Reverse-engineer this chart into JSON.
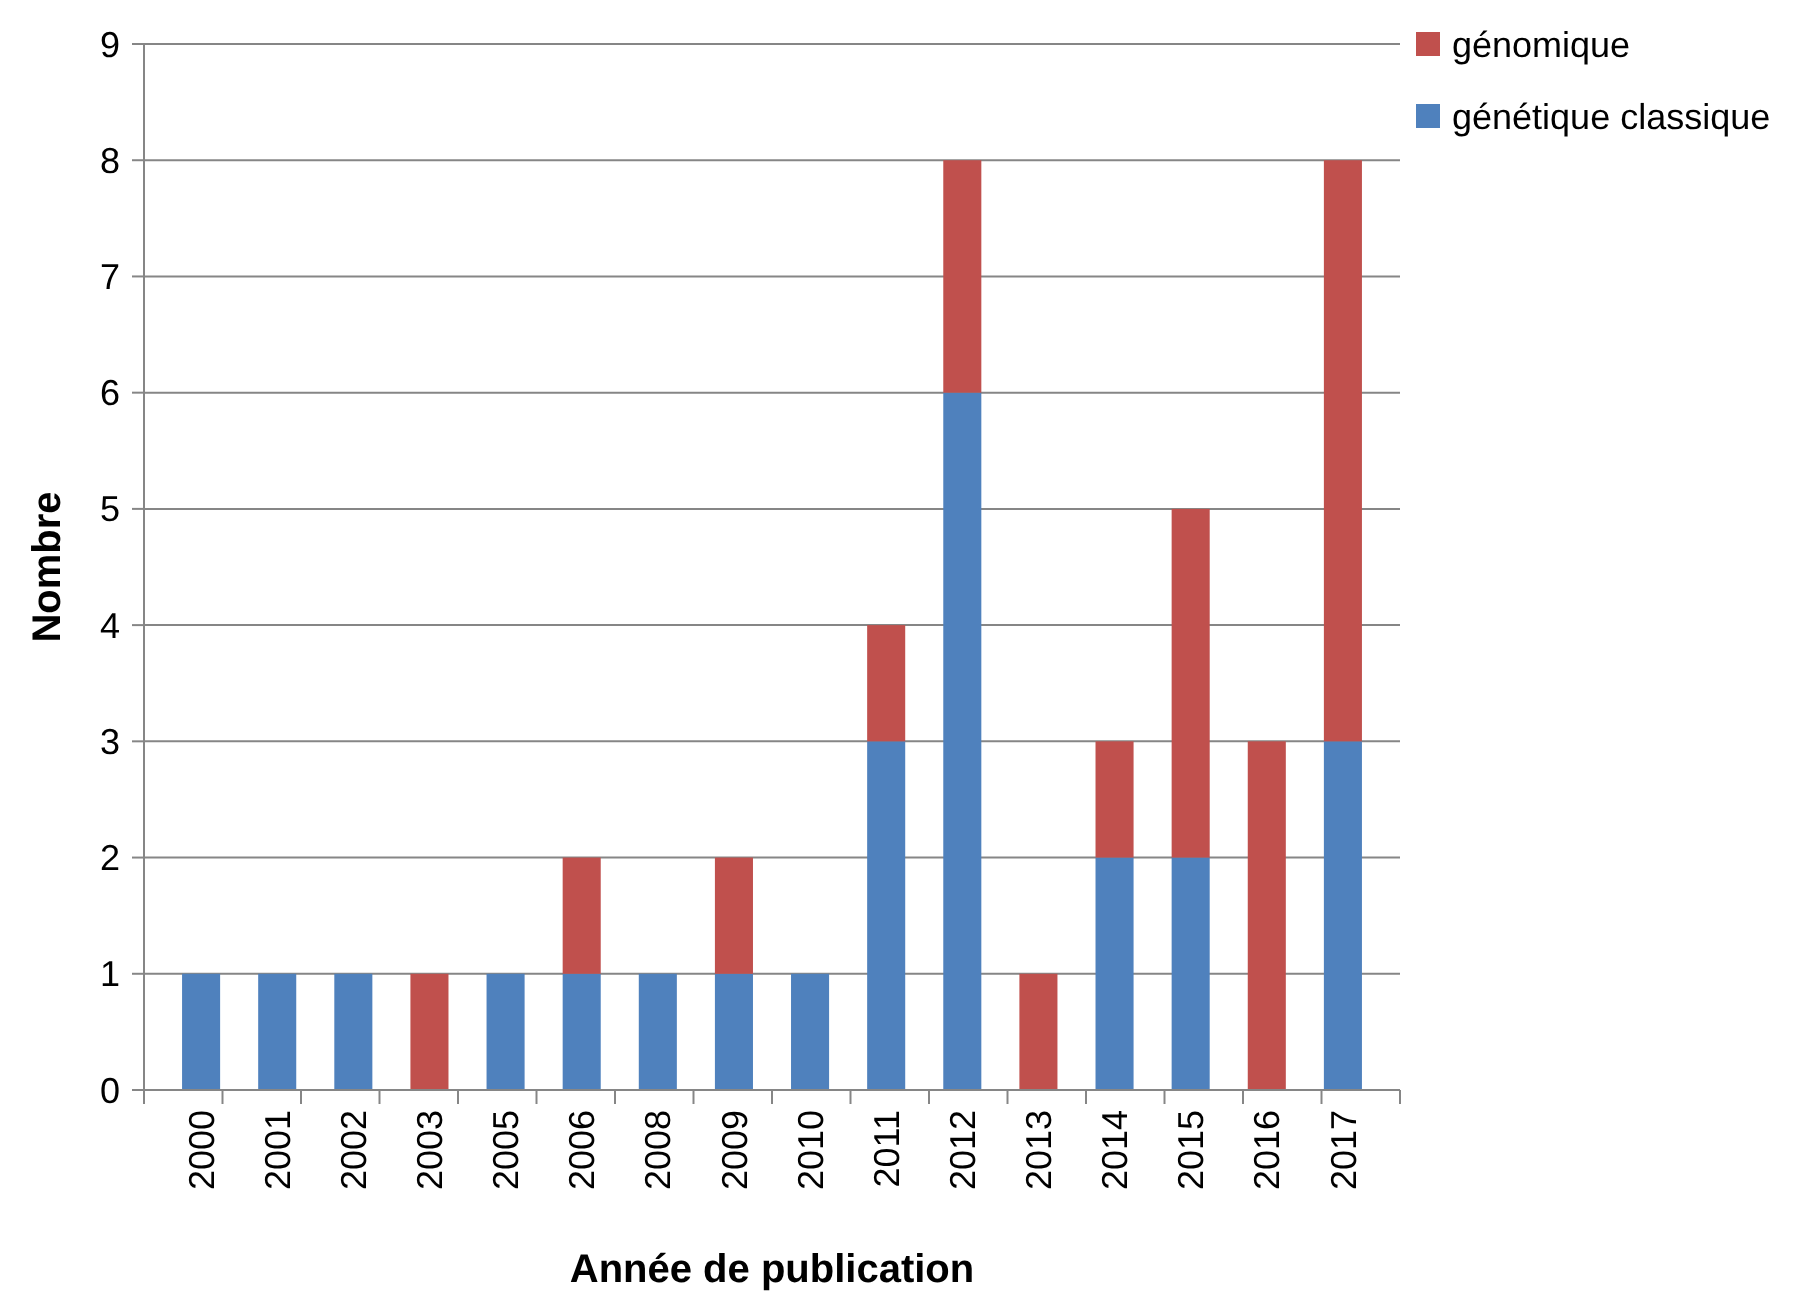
{
  "chart_data": {
    "type": "bar",
    "stacked": true,
    "xlabel": "Année de publication",
    "ylabel": "Nombre",
    "categories": [
      "2000",
      "2001",
      "2002",
      "2003",
      "2005",
      "2006",
      "2008",
      "2009",
      "2010",
      "2011",
      "2012",
      "2013",
      "2014",
      "2015",
      "2016",
      "2017"
    ],
    "series": [
      {
        "name": "génétique classique",
        "color": "#4f81bd",
        "values": [
          1,
          1,
          1,
          0,
          1,
          1,
          1,
          1,
          1,
          3,
          6,
          0,
          2,
          2,
          0,
          3
        ]
      },
      {
        "name": "génomique",
        "color": "#c0504d",
        "values": [
          0,
          0,
          0,
          1,
          0,
          1,
          0,
          1,
          0,
          1,
          2,
          1,
          1,
          3,
          3,
          5
        ]
      }
    ],
    "ylim": [
      0,
      9
    ],
    "yticks": [
      0,
      1,
      2,
      3,
      4,
      5,
      6,
      7,
      8,
      9
    ],
    "grid": "y",
    "legend": "top right"
  }
}
